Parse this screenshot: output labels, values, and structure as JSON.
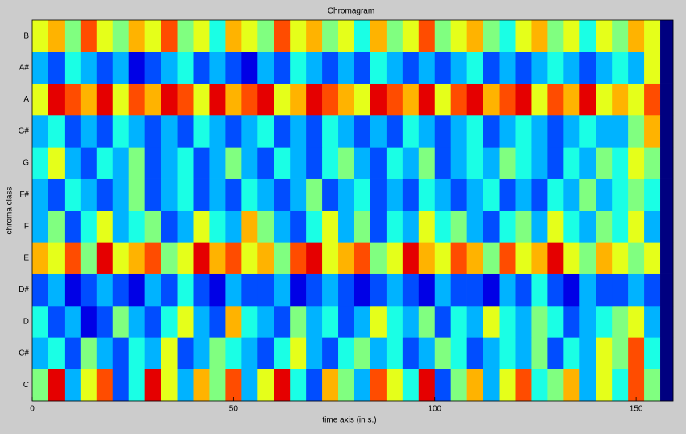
{
  "chart_data": {
    "type": "heatmap",
    "title": "Chromagram",
    "x_label": "time axis (in s.)",
    "y_label": "chroma class",
    "categories": [
      "C",
      "C#",
      "D",
      "D#",
      "E",
      "F",
      "F#",
      "G",
      "G#",
      "A",
      "A#",
      "B"
    ],
    "xbins": [
      0,
      4,
      8,
      12,
      16,
      20,
      24,
      28,
      32,
      36,
      40,
      44,
      48,
      52,
      56,
      60,
      64,
      68,
      72,
      76,
      80,
      84,
      88,
      92,
      96,
      100,
      104,
      108,
      112,
      116,
      120,
      124,
      128,
      132,
      136,
      140,
      144,
      148,
      152,
      156,
      159.2
    ],
    "xlim": [
      0,
      159.2
    ],
    "xticks": [
      0,
      50,
      100,
      150
    ],
    "zlim": [
      0,
      1
    ],
    "colormap": "jet",
    "z": [
      [
        0.5,
        0.9,
        0.3,
        0.6,
        0.8,
        0.2,
        0.4,
        0.9,
        0.6,
        0.3,
        0.7,
        0.5,
        0.8,
        0.3,
        0.6,
        0.9,
        0.4,
        0.2,
        0.7,
        0.5,
        0.3,
        0.8,
        0.6,
        0.4,
        0.9,
        0.2,
        0.5,
        0.7,
        0.3,
        0.6,
        0.8,
        0.4,
        0.5,
        0.7,
        0.3,
        0.6,
        0.4,
        0.8,
        0.5,
        0.0
      ],
      [
        0.3,
        0.4,
        0.2,
        0.5,
        0.3,
        0.2,
        0.4,
        0.3,
        0.6,
        0.2,
        0.3,
        0.5,
        0.4,
        0.3,
        0.2,
        0.4,
        0.6,
        0.3,
        0.2,
        0.4,
        0.5,
        0.3,
        0.4,
        0.2,
        0.3,
        0.5,
        0.4,
        0.2,
        0.3,
        0.4,
        0.3,
        0.5,
        0.2,
        0.4,
        0.3,
        0.6,
        0.5,
        0.8,
        0.4,
        0.0
      ],
      [
        0.4,
        0.2,
        0.3,
        0.1,
        0.2,
        0.5,
        0.3,
        0.2,
        0.4,
        0.6,
        0.3,
        0.2,
        0.7,
        0.4,
        0.3,
        0.2,
        0.5,
        0.3,
        0.4,
        0.2,
        0.3,
        0.6,
        0.4,
        0.3,
        0.5,
        0.2,
        0.4,
        0.3,
        0.6,
        0.4,
        0.3,
        0.5,
        0.4,
        0.2,
        0.3,
        0.4,
        0.5,
        0.6,
        0.3,
        0.0
      ],
      [
        0.2,
        0.3,
        0.1,
        0.2,
        0.3,
        0.2,
        0.1,
        0.3,
        0.2,
        0.4,
        0.2,
        0.1,
        0.3,
        0.2,
        0.2,
        0.3,
        0.1,
        0.2,
        0.3,
        0.2,
        0.1,
        0.2,
        0.3,
        0.2,
        0.1,
        0.3,
        0.2,
        0.2,
        0.1,
        0.3,
        0.2,
        0.4,
        0.2,
        0.1,
        0.3,
        0.2,
        0.2,
        0.3,
        0.2,
        0.0
      ],
      [
        0.7,
        0.6,
        0.8,
        0.5,
        0.9,
        0.6,
        0.7,
        0.8,
        0.5,
        0.6,
        0.9,
        0.7,
        0.8,
        0.6,
        0.7,
        0.5,
        0.8,
        0.9,
        0.6,
        0.7,
        0.8,
        0.5,
        0.6,
        0.9,
        0.7,
        0.6,
        0.8,
        0.7,
        0.5,
        0.8,
        0.6,
        0.7,
        0.9,
        0.6,
        0.5,
        0.7,
        0.6,
        0.5,
        0.6,
        0.0
      ],
      [
        0.3,
        0.5,
        0.2,
        0.4,
        0.6,
        0.3,
        0.4,
        0.5,
        0.2,
        0.3,
        0.6,
        0.4,
        0.3,
        0.7,
        0.5,
        0.3,
        0.2,
        0.4,
        0.6,
        0.3,
        0.5,
        0.2,
        0.4,
        0.3,
        0.6,
        0.4,
        0.5,
        0.3,
        0.2,
        0.4,
        0.5,
        0.3,
        0.6,
        0.4,
        0.3,
        0.5,
        0.4,
        0.6,
        0.3,
        0.0
      ],
      [
        0.3,
        0.2,
        0.4,
        0.3,
        0.2,
        0.3,
        0.5,
        0.2,
        0.3,
        0.4,
        0.2,
        0.3,
        0.2,
        0.4,
        0.3,
        0.2,
        0.3,
        0.5,
        0.2,
        0.3,
        0.4,
        0.2,
        0.3,
        0.2,
        0.4,
        0.3,
        0.2,
        0.3,
        0.4,
        0.2,
        0.3,
        0.2,
        0.4,
        0.3,
        0.5,
        0.3,
        0.4,
        0.5,
        0.4,
        0.0
      ],
      [
        0.4,
        0.6,
        0.3,
        0.2,
        0.4,
        0.3,
        0.5,
        0.2,
        0.3,
        0.4,
        0.2,
        0.3,
        0.5,
        0.3,
        0.2,
        0.4,
        0.3,
        0.2,
        0.4,
        0.5,
        0.3,
        0.2,
        0.4,
        0.3,
        0.5,
        0.2,
        0.3,
        0.4,
        0.3,
        0.5,
        0.4,
        0.3,
        0.2,
        0.4,
        0.3,
        0.5,
        0.4,
        0.6,
        0.5,
        0.0
      ],
      [
        0.3,
        0.4,
        0.2,
        0.3,
        0.2,
        0.4,
        0.3,
        0.2,
        0.3,
        0.2,
        0.4,
        0.3,
        0.2,
        0.3,
        0.4,
        0.2,
        0.3,
        0.2,
        0.4,
        0.3,
        0.2,
        0.3,
        0.2,
        0.4,
        0.3,
        0.2,
        0.3,
        0.4,
        0.2,
        0.3,
        0.4,
        0.3,
        0.2,
        0.3,
        0.4,
        0.3,
        0.3,
        0.5,
        0.7,
        0.0
      ],
      [
        0.6,
        0.9,
        0.8,
        0.7,
        0.9,
        0.6,
        0.8,
        0.7,
        0.9,
        0.8,
        0.6,
        0.9,
        0.7,
        0.8,
        0.9,
        0.6,
        0.7,
        0.9,
        0.8,
        0.7,
        0.6,
        0.9,
        0.8,
        0.7,
        0.9,
        0.6,
        0.8,
        0.9,
        0.7,
        0.8,
        0.9,
        0.6,
        0.8,
        0.7,
        0.9,
        0.6,
        0.7,
        0.6,
        0.8,
        0.0
      ],
      [
        0.3,
        0.2,
        0.4,
        0.3,
        0.2,
        0.3,
        0.1,
        0.2,
        0.3,
        0.4,
        0.2,
        0.3,
        0.2,
        0.1,
        0.3,
        0.2,
        0.4,
        0.3,
        0.2,
        0.3,
        0.2,
        0.4,
        0.3,
        0.2,
        0.3,
        0.2,
        0.3,
        0.4,
        0.2,
        0.3,
        0.2,
        0.3,
        0.4,
        0.3,
        0.2,
        0.3,
        0.4,
        0.3,
        0.6,
        0.0
      ],
      [
        0.6,
        0.7,
        0.5,
        0.8,
        0.6,
        0.5,
        0.7,
        0.6,
        0.8,
        0.5,
        0.6,
        0.4,
        0.7,
        0.6,
        0.5,
        0.8,
        0.6,
        0.7,
        0.5,
        0.6,
        0.4,
        0.7,
        0.5,
        0.6,
        0.8,
        0.5,
        0.6,
        0.7,
        0.5,
        0.4,
        0.6,
        0.7,
        0.5,
        0.6,
        0.4,
        0.6,
        0.5,
        0.7,
        0.6,
        0.0
      ]
    ]
  }
}
